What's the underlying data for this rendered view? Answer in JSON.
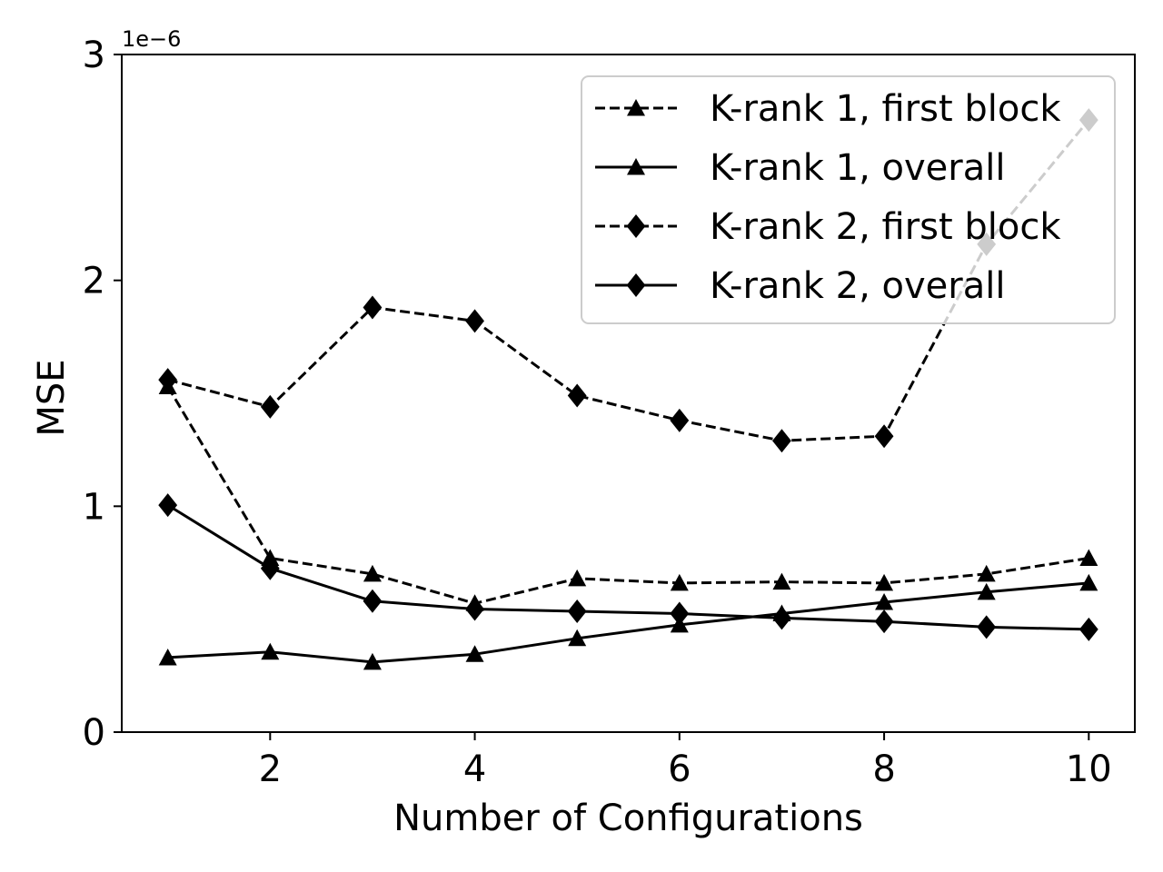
{
  "chart_data": {
    "type": "line",
    "title": "",
    "xlabel": "Number of Configurations",
    "ylabel": "MSE",
    "y_scale_label": "1e−6",
    "xlim": [
      0.55,
      10.45
    ],
    "ylim": [
      0,
      3
    ],
    "x_ticks": [
      2,
      4,
      6,
      8,
      10
    ],
    "x_tick_labels": [
      "2",
      "4",
      "6",
      "8",
      "10"
    ],
    "y_ticks": [
      0,
      1,
      2,
      3
    ],
    "y_tick_labels": [
      "0",
      "1",
      "2",
      "3"
    ],
    "grid": false,
    "legend_position": "top-right",
    "x": [
      1,
      2,
      3,
      4,
      5,
      6,
      7,
      8,
      9,
      10
    ],
    "series": [
      {
        "name": "K-rank 1, first block",
        "line_style": "dashed",
        "marker": "triangle",
        "values": [
          1.53,
          0.77,
          0.7,
          0.57,
          0.68,
          0.66,
          0.665,
          0.66,
          0.7,
          0.77
        ]
      },
      {
        "name": "K-rank 1, overall",
        "line_style": "solid",
        "marker": "triangle",
        "values": [
          0.33,
          0.355,
          0.31,
          0.345,
          0.415,
          0.475,
          0.525,
          0.575,
          0.62,
          0.66
        ]
      },
      {
        "name": "K-rank 2, first block",
        "line_style": "dashed",
        "marker": "diamond",
        "values": [
          1.56,
          1.44,
          1.88,
          1.82,
          1.49,
          1.38,
          1.29,
          1.31,
          2.16,
          2.71
        ]
      },
      {
        "name": "K-rank 2, overall",
        "line_style": "solid",
        "marker": "diamond",
        "values": [
          1.005,
          0.725,
          0.58,
          0.545,
          0.535,
          0.525,
          0.505,
          0.49,
          0.465,
          0.455
        ]
      }
    ]
  }
}
